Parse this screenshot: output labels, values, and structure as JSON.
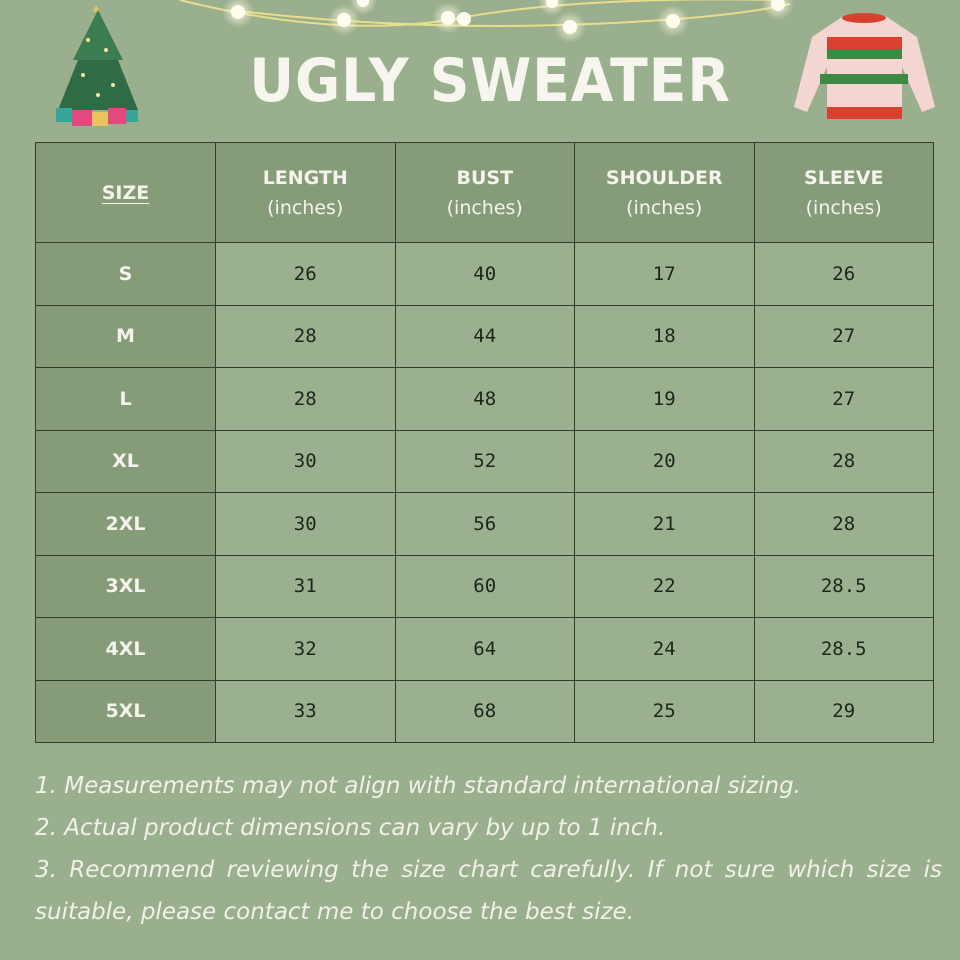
{
  "title": "UGLY SWEATER",
  "table": {
    "headers": [
      {
        "label": "SIZE",
        "unit": ""
      },
      {
        "label": "LENGTH",
        "unit": "(inches)"
      },
      {
        "label": "BUST",
        "unit": "(inches)"
      },
      {
        "label": "SHOULDER",
        "unit": "(inches)"
      },
      {
        "label": "SLEEVE",
        "unit": "(inches)"
      }
    ],
    "rows": [
      [
        "S",
        "26",
        "40",
        "17",
        "26"
      ],
      [
        "M",
        "28",
        "44",
        "18",
        "27"
      ],
      [
        "L",
        "28",
        "48",
        "19",
        "27"
      ],
      [
        "XL",
        "30",
        "52",
        "20",
        "28"
      ],
      [
        "2XL",
        "30",
        "56",
        "21",
        "28"
      ],
      [
        "3XL",
        "31",
        "60",
        "22",
        "28.5"
      ],
      [
        "4XL",
        "32",
        "64",
        "24",
        "28.5"
      ],
      [
        "5XL",
        "33",
        "68",
        "25",
        "29"
      ]
    ]
  },
  "notes": [
    "1. Measurements may not align with standard international sizing.",
    "2. Actual product dimensions can vary by up to 1 inch.",
    "3. Recommend reviewing the size chart carefully. If not sure which size is suitable, please contact me to choose the best size."
  ],
  "icons": [
    "christmas-tree-icon",
    "string-lights-icon",
    "sweater-icon"
  ],
  "colors": {
    "background": "#9aaf8e",
    "header_cell": "#869c79",
    "text_light": "#f4f3ec"
  }
}
